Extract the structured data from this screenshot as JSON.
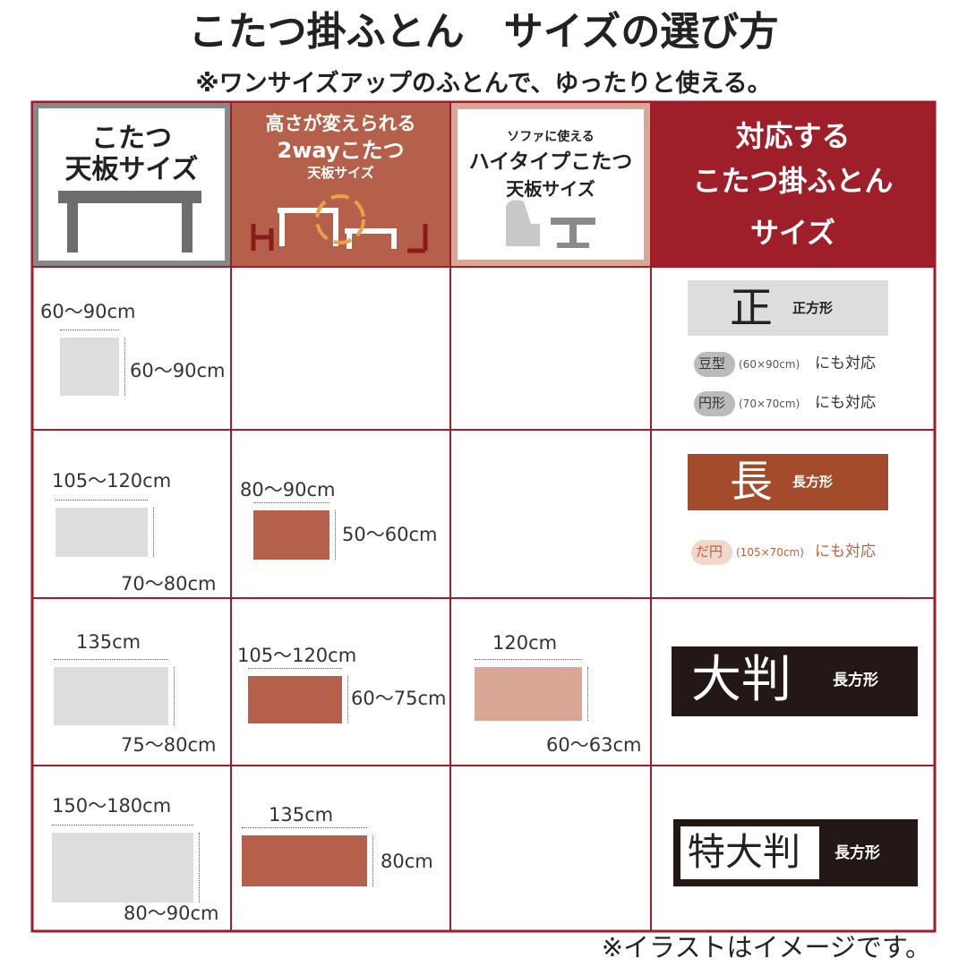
{
  "header": {
    "title": "こたつ掛ふとん　サイズの選び方",
    "subtitle": "※ワンサイズアップのふとんで、ゆったりと使える。"
  },
  "table": {
    "head": [
      [
        "こたつ",
        "天板サイズ"
      ],
      [
        "高さが変えられる",
        "2wayこたつ",
        "天板サイズ"
      ],
      [
        "ソファに使える",
        "ハイタイプこたつ",
        "天板サイズ"
      ],
      [
        "対応する",
        "こたつ掛ふとん",
        "サイズ"
      ]
    ],
    "rows": [
      {
        "kotatsu": {
          "width": "60〜90cm",
          "depth": "60〜90cm"
        },
        "futon": {
          "kanji": "正",
          "label": "正方形",
          "notes": [
            {
              "tag": "豆型",
              "size": "(60×90cm)",
              "text": "にも対応"
            },
            {
              "tag": "円形",
              "size": "(70×70cm)",
              "text": "にも対応"
            }
          ]
        }
      },
      {
        "kotatsu": {
          "width": "105〜120cm",
          "depth": "70〜80cm"
        },
        "twoway": {
          "width": "80〜90cm",
          "depth": "50〜60cm"
        },
        "futon": {
          "kanji": "長",
          "label": "長方形",
          "notes": [
            {
              "tag": "だ円",
              "size": "(105×70cm)",
              "text": "にも対応"
            }
          ]
        }
      },
      {
        "kotatsu": {
          "width": "135cm",
          "depth": "75〜80cm"
        },
        "twoway": {
          "width": "105〜120cm",
          "depth": "60〜75cm"
        },
        "hightype": {
          "width": "120cm",
          "depth": "60〜63cm"
        },
        "futon": {
          "kanji": "大判",
          "label": "長方形"
        }
      },
      {
        "kotatsu": {
          "width": "150〜180cm",
          "depth": "80〜90cm"
        },
        "twoway": {
          "width": "135cm",
          "depth": "80cm"
        },
        "futon": {
          "kanji": "特大判",
          "label": "長方形"
        }
      }
    ]
  },
  "footer": {
    "note": "※イラストはイメージです。"
  }
}
